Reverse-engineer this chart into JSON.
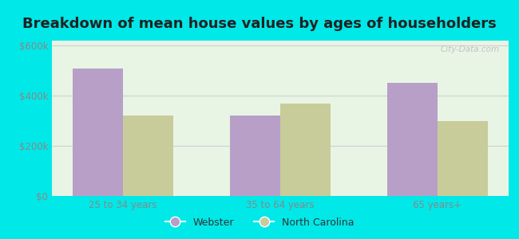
{
  "title": "Breakdown of mean house values by ages of householders",
  "categories": [
    "25 to 34 years",
    "35 to 64 years",
    "65 years+"
  ],
  "webster_values": [
    510000,
    320000,
    450000
  ],
  "nc_values": [
    320000,
    370000,
    300000
  ],
  "webster_color": "#b89fc8",
  "nc_color": "#c8cc9a",
  "background_outer": "#00e8e8",
  "background_inner": "#e8f5e5",
  "ylabel_ticks": [
    0,
    200000,
    400000,
    600000
  ],
  "ylabel_labels": [
    "$0",
    "$200k",
    "$400k",
    "$600k"
  ],
  "legend_webster": "Webster",
  "legend_nc": "North Carolina",
  "bar_width": 0.32,
  "grid_color": "#d0d0d0",
  "title_fontsize": 13,
  "tick_fontsize": 8.5,
  "legend_fontsize": 9,
  "title_color": "#222222",
  "tick_color": "#888888"
}
